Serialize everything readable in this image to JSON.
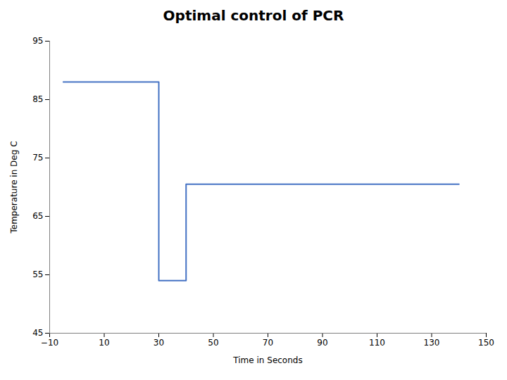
{
  "chart_data": {
    "type": "line",
    "title": "Optimal control of PCR",
    "xlabel": "Time in Seconds",
    "ylabel": "Temperature in Deg C",
    "x": [
      -5,
      30,
      30,
      40,
      40,
      140
    ],
    "values": [
      88,
      88,
      54,
      54,
      70.5,
      70.5
    ],
    "color": "#4472C4",
    "xlim": [
      -10,
      150
    ],
    "ylim": [
      45,
      95
    ],
    "xticks": [
      -10,
      10,
      30,
      50,
      70,
      90,
      110,
      130,
      150
    ],
    "yticks": [
      45,
      55,
      65,
      75,
      85,
      95
    ],
    "grid": false
  }
}
